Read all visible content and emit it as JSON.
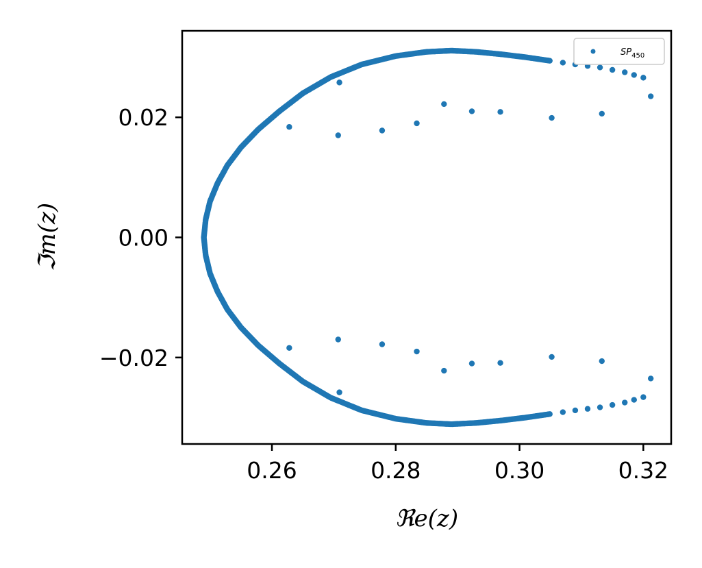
{
  "chart_data": {
    "type": "scatter",
    "xlabel": "ℜe(z)",
    "ylabel": "ℑm(z)",
    "xlim": [
      0.2455,
      0.3245
    ],
    "ylim": [
      -0.0344,
      0.0344
    ],
    "xticks": [
      0.26,
      0.28,
      0.3,
      0.32
    ],
    "xtick_labels": [
      "0.26",
      "0.28",
      "0.30",
      "0.32"
    ],
    "yticks": [
      -0.02,
      0.0,
      0.02
    ],
    "ytick_labels": [
      "−0.02",
      "0.00",
      "0.02"
    ],
    "grid": false,
    "legend_position": "top-right",
    "series": [
      {
        "name_main": "SP",
        "name_sub": "450",
        "color": "#1f77b4",
        "curve": {
          "description_points_upper": [
            [
              0.249,
              0.0
            ],
            [
              0.2493,
              0.003
            ],
            [
              0.25,
              0.006
            ],
            [
              0.2512,
              0.009
            ],
            [
              0.2528,
              0.012
            ],
            [
              0.255,
              0.015
            ],
            [
              0.2578,
              0.018
            ],
            [
              0.2612,
              0.021
            ],
            [
              0.265,
              0.024
            ],
            [
              0.2695,
              0.0267
            ],
            [
              0.2745,
              0.0288
            ],
            [
              0.28,
              0.0302
            ],
            [
              0.285,
              0.0309
            ],
            [
              0.289,
              0.0311
            ],
            [
              0.293,
              0.0309
            ],
            [
              0.297,
              0.0305
            ],
            [
              0.301,
              0.03
            ],
            [
              0.305,
              0.0294
            ],
            [
              0.309,
              0.0288
            ],
            [
              0.313,
              0.0283
            ],
            [
              0.317,
              0.0275
            ],
            [
              0.32,
              0.0266
            ],
            [
              0.3212,
              0.0235
            ]
          ],
          "dense_until_x": 0.305,
          "symmetric": true
        },
        "inner_points_upper": [
          [
            0.2628,
            0.0184
          ],
          [
            0.2709,
            0.0258
          ],
          [
            0.2707,
            0.017
          ],
          [
            0.2778,
            0.0178
          ],
          [
            0.2834,
            0.019
          ],
          [
            0.2878,
            0.0222
          ],
          [
            0.2923,
            0.021
          ],
          [
            0.2969,
            0.0209
          ],
          [
            0.3052,
            0.0199
          ],
          [
            0.3133,
            0.0206
          ]
        ]
      }
    ]
  }
}
